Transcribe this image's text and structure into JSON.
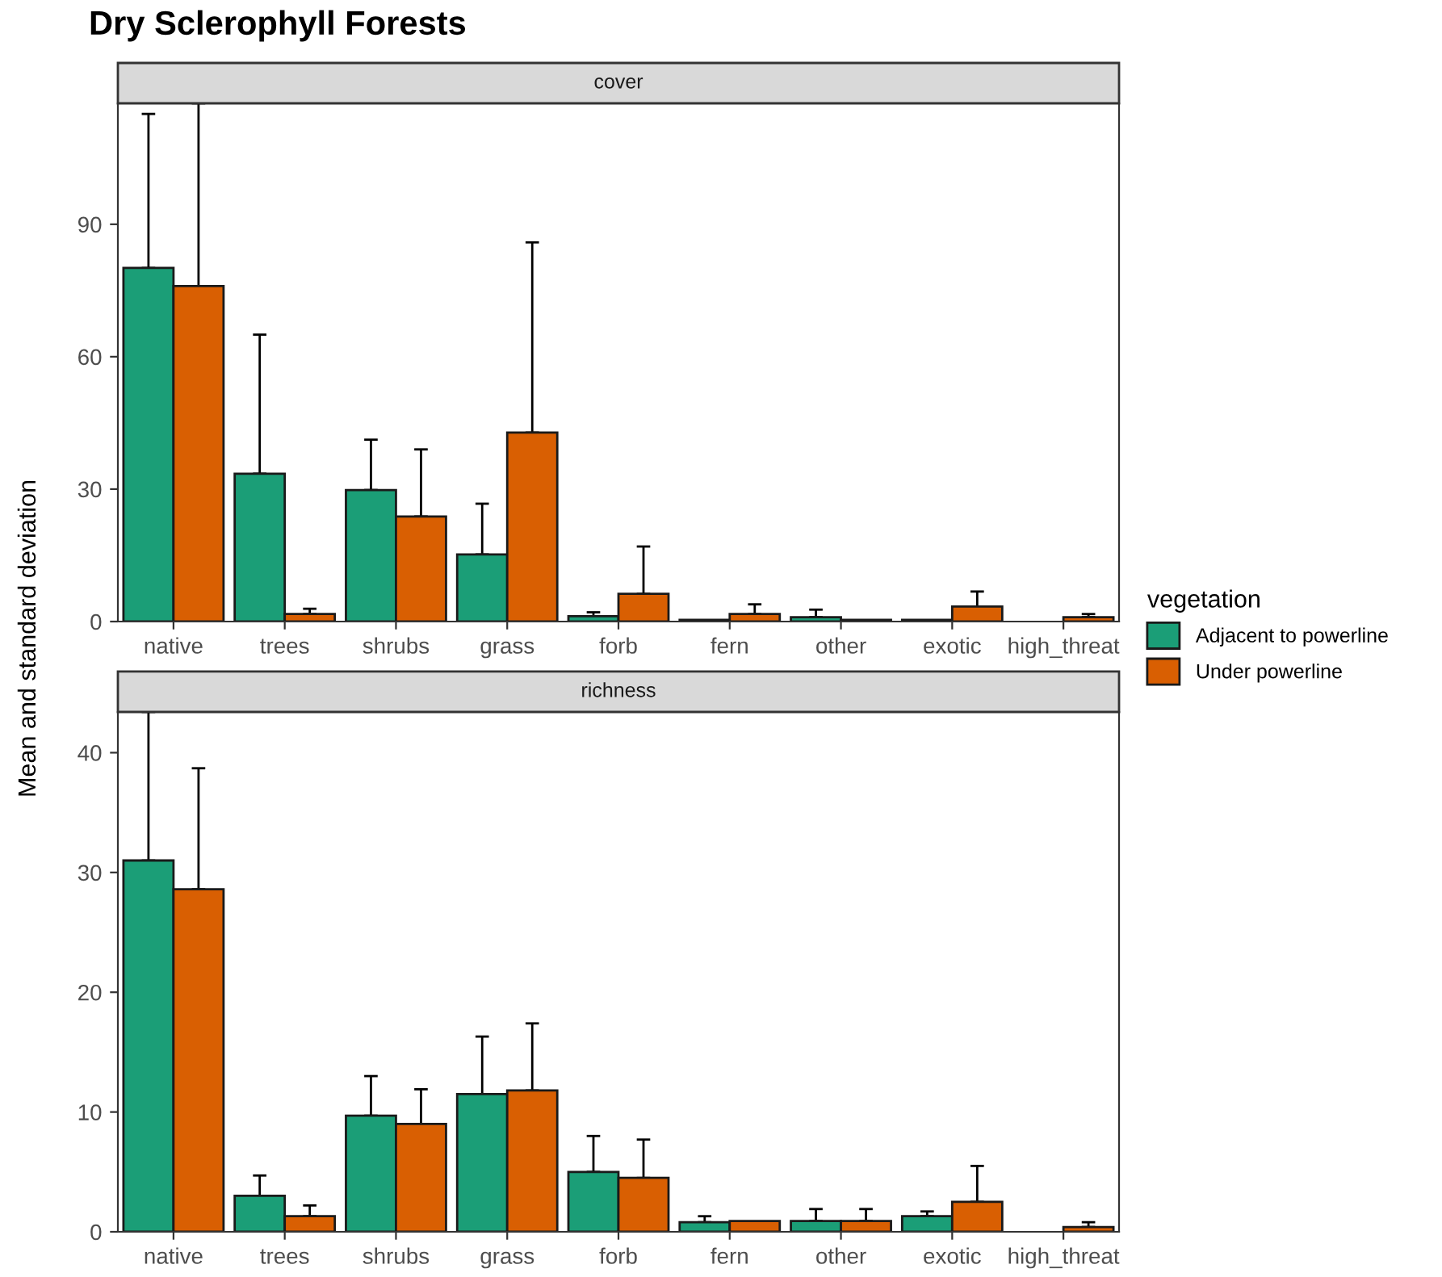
{
  "chart_data": [
    {
      "type": "bar",
      "title": "Dry Sclerophyll Forests",
      "subtitle": "cover",
      "ylabel": "Mean and standard deviation",
      "legend_title": "vegetation",
      "legend": "right",
      "categories": [
        "native",
        "trees",
        "shrubs",
        "grass",
        "forb",
        "fern",
        "other",
        "exotic",
        "high_threat"
      ],
      "ylim": [
        0,
        117.4
      ],
      "yticks": [
        0,
        30,
        60,
        90
      ],
      "series": [
        {
          "name": "Adjacent to powerline",
          "color": "#1b9e77",
          "values": [
            80.1,
            33.5,
            29.8,
            15.2,
            1.2,
            0.4,
            1.0,
            0.4,
            null
          ],
          "errors": [
            [
              80.1,
              115.0
            ],
            [
              33.5,
              65.0
            ],
            [
              29.8,
              41.2
            ],
            [
              15.2,
              26.7
            ],
            [
              1.2,
              2.1
            ],
            null,
            [
              1.0,
              2.7
            ],
            null,
            null
          ]
        },
        {
          "name": "Under powerline",
          "color": "#d95f02",
          "values": [
            76.0,
            1.7,
            23.8,
            42.8,
            6.3,
            1.7,
            0.4,
            3.4,
            1.0
          ],
          "errors": [
            [
              76.0,
              117.4
            ],
            [
              1.7,
              2.9
            ],
            [
              23.8,
              39.0
            ],
            [
              42.8,
              85.9
            ],
            [
              6.3,
              17.0
            ],
            [
              1.7,
              3.9
            ],
            null,
            [
              3.4,
              6.8
            ],
            [
              1.0,
              1.7
            ]
          ]
        }
      ]
    },
    {
      "type": "bar",
      "subtitle": "richness",
      "categories": [
        "native",
        "trees",
        "shrubs",
        "grass",
        "forb",
        "fern",
        "other",
        "exotic",
        "high_threat"
      ],
      "ylim": [
        0,
        43.4
      ],
      "yticks": [
        0,
        10,
        20,
        30,
        40
      ],
      "series": [
        {
          "color": "#1b9e77",
          "values": [
            31.0,
            3.0,
            9.7,
            11.5,
            5.0,
            0.8,
            0.9,
            1.3,
            null
          ],
          "errors": [
            [
              31.0,
              43.4
            ],
            [
              3.0,
              4.7
            ],
            [
              9.7,
              13.0
            ],
            [
              11.5,
              16.3
            ],
            [
              5.0,
              8.0
            ],
            [
              0.8,
              1.3
            ],
            [
              0.9,
              1.9
            ],
            [
              1.3,
              1.7
            ],
            null
          ]
        },
        {
          "color": "#d95f02",
          "values": [
            28.6,
            1.3,
            9.0,
            11.8,
            4.5,
            0.9,
            0.9,
            2.5,
            0.4
          ],
          "errors": [
            [
              28.6,
              38.7
            ],
            [
              1.3,
              2.2
            ],
            [
              9.0,
              11.9
            ],
            [
              11.8,
              17.4
            ],
            [
              4.5,
              7.7
            ],
            null,
            [
              0.9,
              1.9
            ],
            [
              2.5,
              5.5
            ],
            [
              0.4,
              0.8
            ]
          ]
        }
      ]
    }
  ]
}
